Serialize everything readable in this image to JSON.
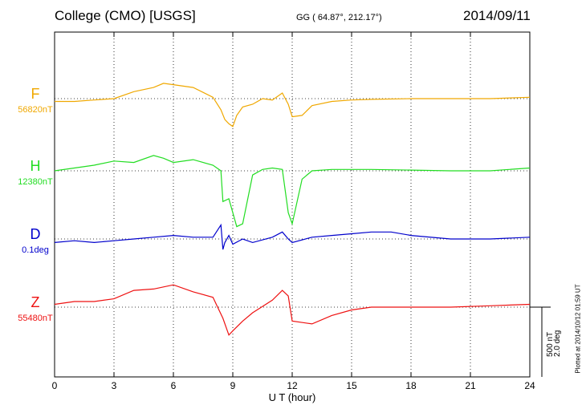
{
  "header": {
    "station": "College (CMO)  [USGS]",
    "coords": "GG ( 64.87°, 212.17°)",
    "date": "2014/09/11"
  },
  "footer": {
    "plotted_note": "Plotted at 2014/10/12 01:59 UT"
  },
  "scale_bar": {
    "nt_label": "500 nT",
    "deg_label": "2.0 deg"
  },
  "colors": {
    "F": "#f0a800",
    "H": "#22dd22",
    "D": "#0000cc",
    "Z": "#ee1111",
    "grid": "#000000"
  },
  "chart_data": {
    "type": "line",
    "title": "College (CMO)  [USGS]",
    "xlabel": "U T (hour)",
    "ylabel": "",
    "xlim": [
      0,
      24
    ],
    "x_ticks": [
      "0",
      "3",
      "6",
      "9",
      "12",
      "15",
      "18",
      "21",
      "24"
    ],
    "scale": {
      "nT_per_bar": 500,
      "deg_per_bar": 2.0
    },
    "series": [
      {
        "name": "F",
        "baseline_label": "56820nT",
        "units": "nT",
        "x": [
          0,
          1,
          2,
          3,
          4,
          5,
          5.5,
          6,
          7,
          8,
          8.4,
          8.6,
          8.8,
          9,
          9.2,
          9.5,
          10,
          10.5,
          11,
          11.5,
          11.8,
          12,
          12.5,
          13,
          14,
          15,
          16,
          18,
          20,
          22,
          24
        ],
        "values": [
          -20,
          -20,
          -10,
          0,
          50,
          80,
          110,
          100,
          80,
          10,
          -80,
          -150,
          -180,
          -200,
          -120,
          -60,
          -40,
          0,
          -10,
          40,
          -40,
          -130,
          -120,
          -50,
          -20,
          -10,
          -5,
          0,
          0,
          0,
          10
        ]
      },
      {
        "name": "H",
        "baseline_label": "12380nT",
        "units": "nT",
        "x": [
          0,
          1,
          2,
          3,
          4,
          5,
          5.5,
          6,
          7,
          8,
          8.4,
          8.5,
          8.8,
          9,
          9.2,
          9.5,
          10,
          10.5,
          11,
          11.5,
          11.8,
          12,
          12.5,
          13,
          14,
          16,
          18,
          20,
          22,
          24
        ],
        "values": [
          0,
          20,
          40,
          70,
          60,
          110,
          90,
          60,
          80,
          40,
          0,
          -220,
          -200,
          -300,
          -400,
          -380,
          -30,
          10,
          20,
          10,
          -300,
          -380,
          -60,
          0,
          10,
          10,
          5,
          0,
          0,
          20
        ]
      },
      {
        "name": "D",
        "baseline_label": "0.1deg",
        "units": "deg",
        "x": [
          0,
          1,
          2,
          3,
          4,
          5,
          6,
          7,
          8,
          8.4,
          8.5,
          8.6,
          8.8,
          9,
          9.5,
          10,
          11,
          11.5,
          11.8,
          12,
          13,
          14,
          15,
          16,
          17,
          18,
          20,
          22,
          24
        ],
        "values": [
          -0.1,
          -0.05,
          -0.1,
          -0.05,
          0.0,
          0.05,
          0.1,
          0.05,
          0.05,
          0.4,
          -0.3,
          -0.1,
          0.1,
          -0.15,
          0.0,
          -0.1,
          0.05,
          0.2,
          0.0,
          -0.1,
          0.05,
          0.1,
          0.15,
          0.2,
          0.2,
          0.1,
          0.0,
          0.0,
          0.05
        ]
      },
      {
        "name": "Z",
        "baseline_label": "55480nT",
        "units": "nT",
        "x": [
          0,
          1,
          2,
          3,
          4,
          5,
          6,
          7,
          8,
          8.5,
          8.8,
          9,
          9.5,
          10,
          11,
          11.5,
          11.8,
          12,
          13,
          14,
          15,
          16,
          18,
          20,
          22,
          24
        ],
        "values": [
          20,
          40,
          40,
          60,
          120,
          130,
          160,
          110,
          70,
          -80,
          -200,
          -170,
          -100,
          -40,
          50,
          120,
          80,
          -100,
          -120,
          -60,
          -20,
          0,
          0,
          0,
          10,
          20
        ]
      }
    ]
  }
}
